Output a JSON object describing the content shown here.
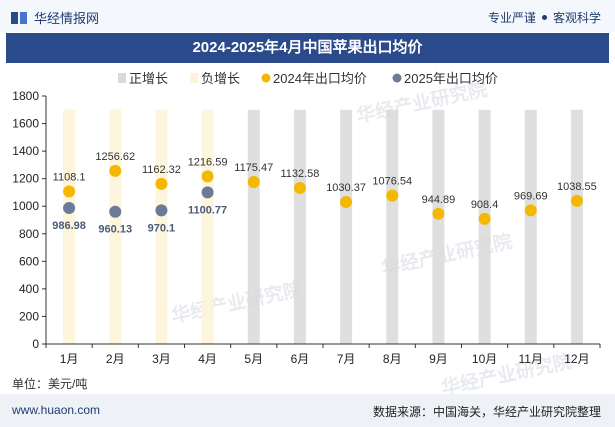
{
  "header": {
    "brand": "华经情报网",
    "slogan_left": "专业严谨",
    "slogan_right": "客观科学"
  },
  "chart_data": {
    "type": "bar",
    "title": "2024-2025年4月中国苹果出口均价",
    "categories": [
      "1月",
      "2月",
      "3月",
      "4月",
      "5月",
      "6月",
      "7月",
      "8月",
      "9月",
      "10月",
      "11月",
      "12月"
    ],
    "legend": [
      "正增长",
      "负增长",
      "2024年出口均价",
      "2025年出口均价"
    ],
    "series": [
      {
        "name": "2024年出口均价",
        "type": "scatter",
        "values": [
          1108.1,
          1256.62,
          1162.32,
          1216.59,
          1175.47,
          1132.58,
          1030.37,
          1076.54,
          944.89,
          908.4,
          969.69,
          1038.55
        ],
        "labels": [
          "1108.1",
          "1256.62",
          "1162.32",
          "1216.59",
          "1175.47",
          "1132.58",
          "1030.37",
          "1076.54",
          "944.89",
          "908.4",
          "969.69",
          "1038.55"
        ]
      },
      {
        "name": "2025年出口均价",
        "type": "scatter",
        "values": [
          986.98,
          960.13,
          970.1,
          1100.77
        ],
        "labels": [
          "986.98",
          "960.13",
          "970.1",
          "1100.77"
        ]
      }
    ],
    "ylim": [
      0,
      1800
    ],
    "yticks": [
      "0",
      "200",
      "400",
      "600",
      "800",
      "1000",
      "1200",
      "1400",
      "1600",
      "1800"
    ],
    "legend_position": "top",
    "grid": false,
    "colors": {
      "positive_bar": "#d9d9d9",
      "negative_bar": "#fdf3d6",
      "series_2024": "#f5b800",
      "series_2025": "#6b7a99"
    }
  },
  "unit_label": "单位：美元/吨",
  "footer": {
    "website": "www.huaon.com",
    "source": "数据来源：中国海关，华经产业研究院整理"
  },
  "watermark": "华经产业研究院"
}
